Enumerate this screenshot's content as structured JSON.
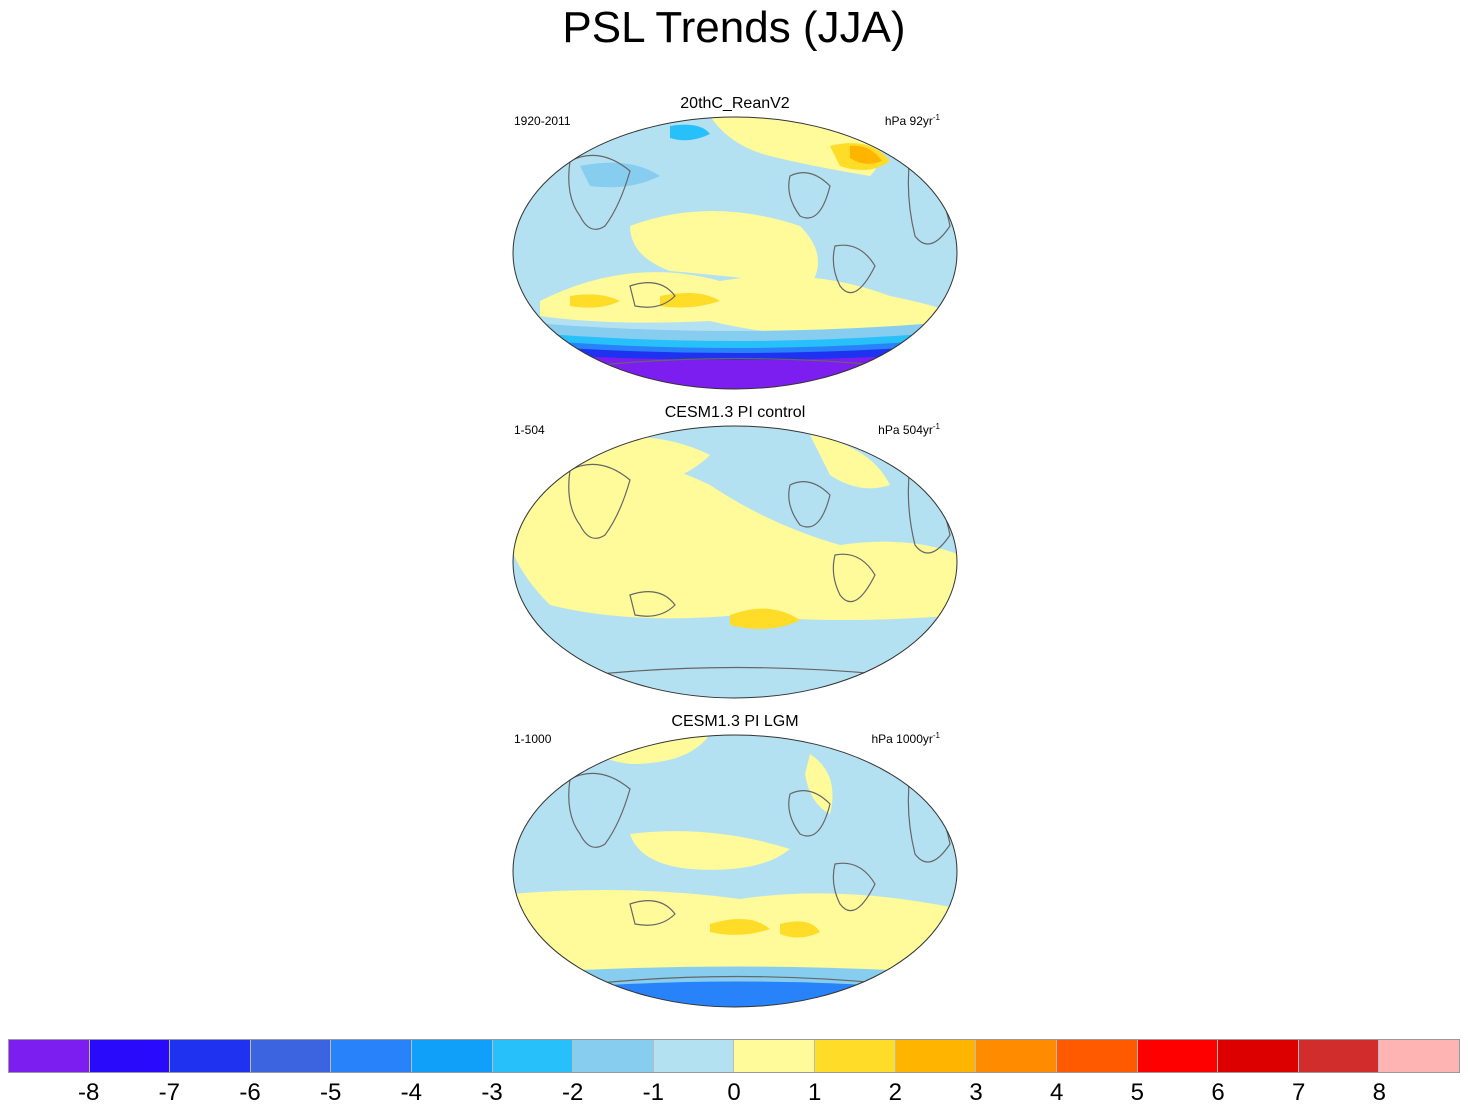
{
  "title": "PSL Trends (JJA)",
  "panels": [
    {
      "title": "20thC_ReanV2",
      "period": "1920-2011",
      "units": "hPa 92yr",
      "units_exp": "-1"
    },
    {
      "title": "CESM1.3 PI control",
      "period": "1-504",
      "units": "hPa 504yr",
      "units_exp": "-1"
    },
    {
      "title": "CESM1.3 PI LGM",
      "period": "1-1000",
      "units": "hPa 1000yr",
      "units_exp": "-1"
    }
  ],
  "colorbar": {
    "colors": [
      "#7d1ef0",
      "#2a0afa",
      "#1e32f0",
      "#3c64e0",
      "#2882fa",
      "#10a0fa",
      "#28c0fa",
      "#86cdf0",
      "#b4e1f2",
      "#fffa9a",
      "#ffdc28",
      "#ffb400",
      "#ff8c00",
      "#ff5a00",
      "#ff0000",
      "#dc0000",
      "#d22d2d",
      "#ffb4b4"
    ],
    "labels": [
      "-8",
      "-7",
      "-6",
      "-5",
      "-4",
      "-3",
      "-2",
      "-1",
      "0",
      "1",
      "2",
      "3",
      "4",
      "5",
      "6",
      "7",
      "8"
    ]
  }
}
